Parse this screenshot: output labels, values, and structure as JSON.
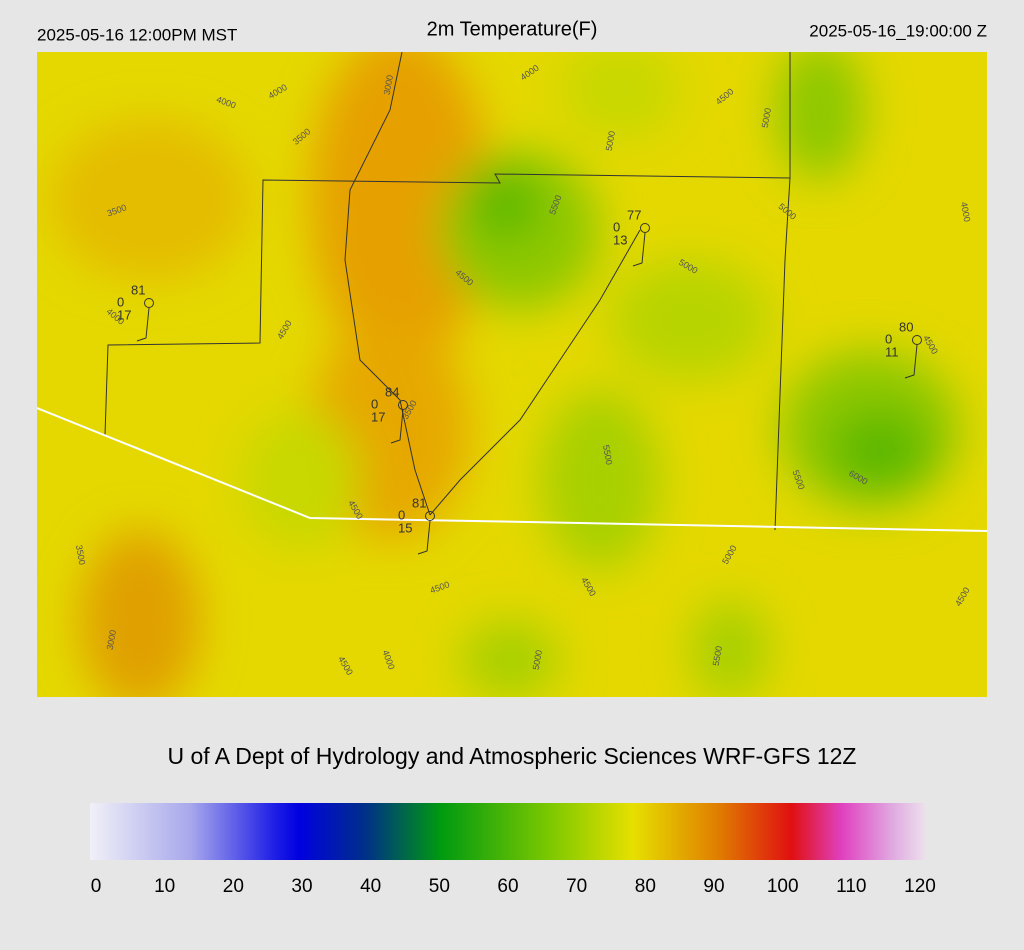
{
  "header": {
    "left": "2025-05-16 12:00PM MST",
    "title": "2m Temperature(F)",
    "right": "2025-05-16_19:00:00 Z"
  },
  "contour_labels": [
    "4000",
    "4000",
    "3000",
    "3500",
    "4000",
    "4500",
    "5000",
    "5000",
    "5500",
    "3500",
    "5000",
    "4000",
    "4500",
    "5000",
    "4000",
    "4500",
    "4500",
    "3500",
    "5500",
    "5500",
    "6000",
    "4500",
    "3500",
    "5000",
    "4500",
    "4500",
    "4500",
    "3000",
    "4000",
    "4500",
    "5000",
    "5500"
  ],
  "stations": [
    {
      "temperature": "81",
      "top_left": "0",
      "bottom": "17"
    },
    {
      "temperature": "77",
      "top_left": "0",
      "bottom": "13"
    },
    {
      "temperature": "80",
      "top_left": "0",
      "bottom": "11"
    },
    {
      "temperature": "84",
      "top_left": "0",
      "bottom": "17"
    },
    {
      "temperature": "81",
      "top_left": "0",
      "bottom": "15"
    }
  ],
  "footer": "U of A Dept of Hydrology and Atmospheric Sciences WRF-GFS 12Z",
  "colorbar": {
    "ticks": [
      0,
      10,
      20,
      30,
      40,
      50,
      60,
      70,
      80,
      90,
      100,
      110,
      120
    ]
  }
}
